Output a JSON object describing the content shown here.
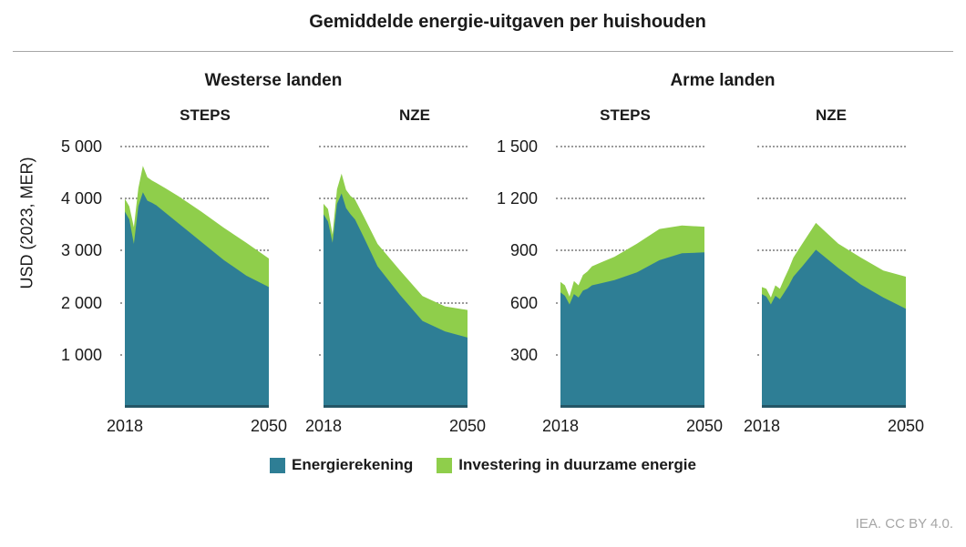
{
  "title": "Gemiddelde energie-uitgaven per huishouden",
  "y_axis_label": "USD (2023, MER)",
  "footer": "IEA. CC BY 4.0.",
  "groups": [
    {
      "label": "Westerse landen"
    },
    {
      "label": "Arme landen"
    }
  ],
  "legend": [
    {
      "label": "Energierekening",
      "color": "#2E7E95"
    },
    {
      "label": "Investering in duurzame energie",
      "color": "#8FCE4B"
    }
  ],
  "colors": {
    "energierekening": "#2E7E95",
    "investering": "#8FCE4B",
    "axis_line": "#245666",
    "gridline": "#9B9B9B",
    "divider": "#A6A6A6",
    "footer_text": "#A6A6A6",
    "text": "#1A1A1A"
  },
  "axes": {
    "left": {
      "tick_labels_top_down": [
        "5 000",
        "4 000",
        "3 000",
        "2 000",
        "1 000"
      ]
    },
    "right_group": {
      "tick_labels_top_down": [
        "1 500",
        "1 200",
        "900",
        "600",
        "300"
      ]
    },
    "x": {
      "start_label": "2018",
      "end_label": "2050"
    }
  },
  "chart_data": [
    {
      "type": "area",
      "group": "Westerse landen",
      "scenario": "STEPS",
      "x_ticks": [
        "2018",
        "2050"
      ],
      "xlim": [
        2018,
        2050
      ],
      "ylim": [
        0,
        5000
      ],
      "yticks": [
        1000,
        2000,
        3000,
        4000,
        5000
      ],
      "x": [
        2018,
        2019,
        2020,
        2021,
        2022,
        2023,
        2024,
        2025,
        2027,
        2030,
        2035,
        2040,
        2045,
        2050
      ],
      "series": [
        {
          "name": "Energierekening",
          "values": [
            3750,
            3600,
            3130,
            3850,
            4120,
            3960,
            3920,
            3870,
            3730,
            3520,
            3170,
            2820,
            2520,
            2300
          ]
        },
        {
          "name": "Investering in duurzame energie",
          "values": [
            250,
            250,
            320,
            350,
            510,
            450,
            430,
            430,
            470,
            520,
            580,
            620,
            630,
            550
          ]
        }
      ]
    },
    {
      "type": "area",
      "group": "Westerse landen",
      "scenario": "NZE",
      "x_ticks": [
        "2018",
        "2050"
      ],
      "xlim": [
        2018,
        2050
      ],
      "ylim": [
        0,
        5000
      ],
      "yticks": [
        1000,
        2000,
        3000,
        4000,
        5000
      ],
      "x": [
        2018,
        2019,
        2020,
        2021,
        2022,
        2023,
        2024,
        2025,
        2027,
        2030,
        2035,
        2040,
        2045,
        2050
      ],
      "series": [
        {
          "name": "Energierekening",
          "values": [
            3700,
            3560,
            3150,
            3900,
            4100,
            3820,
            3700,
            3600,
            3250,
            2700,
            2150,
            1650,
            1450,
            1330
          ]
        },
        {
          "name": "Investering in duurzame energie",
          "values": [
            200,
            240,
            160,
            280,
            380,
            350,
            350,
            380,
            400,
            430,
            470,
            480,
            480,
            530
          ]
        }
      ]
    },
    {
      "type": "area",
      "group": "Arme landen",
      "scenario": "STEPS",
      "x_ticks": [
        "2018",
        "2050"
      ],
      "xlim": [
        2018,
        2050
      ],
      "ylim": [
        0,
        1500
      ],
      "yticks": [
        300,
        600,
        900,
        1200,
        1500
      ],
      "x": [
        2018,
        2019,
        2020,
        2021,
        2022,
        2023,
        2024,
        2025,
        2027,
        2030,
        2035,
        2040,
        2045,
        2050
      ],
      "series": [
        {
          "name": "Energierekening",
          "values": [
            660,
            640,
            590,
            650,
            630,
            670,
            680,
            700,
            712,
            730,
            775,
            845,
            885,
            890
          ]
        },
        {
          "name": "Investering in duurzame energie",
          "values": [
            60,
            60,
            45,
            75,
            70,
            90,
            100,
            110,
            120,
            135,
            165,
            180,
            160,
            148
          ]
        }
      ]
    },
    {
      "type": "area",
      "group": "Arme landen",
      "scenario": "NZE",
      "x_ticks": [
        "2018",
        "2050"
      ],
      "xlim": [
        2018,
        2050
      ],
      "ylim": [
        0,
        1500
      ],
      "yticks": [
        300,
        600,
        900,
        1200,
        1500
      ],
      "x": [
        2018,
        2019,
        2020,
        2021,
        2022,
        2023,
        2024,
        2025,
        2027,
        2030,
        2035,
        2040,
        2045,
        2050
      ],
      "series": [
        {
          "name": "Energierekening",
          "values": [
            650,
            635,
            590,
            640,
            620,
            660,
            700,
            750,
            810,
            905,
            800,
            705,
            630,
            565
          ]
        },
        {
          "name": "Investering in duurzame energie",
          "values": [
            40,
            45,
            40,
            60,
            60,
            80,
            95,
            110,
            130,
            155,
            140,
            155,
            155,
            185
          ]
        }
      ]
    }
  ]
}
